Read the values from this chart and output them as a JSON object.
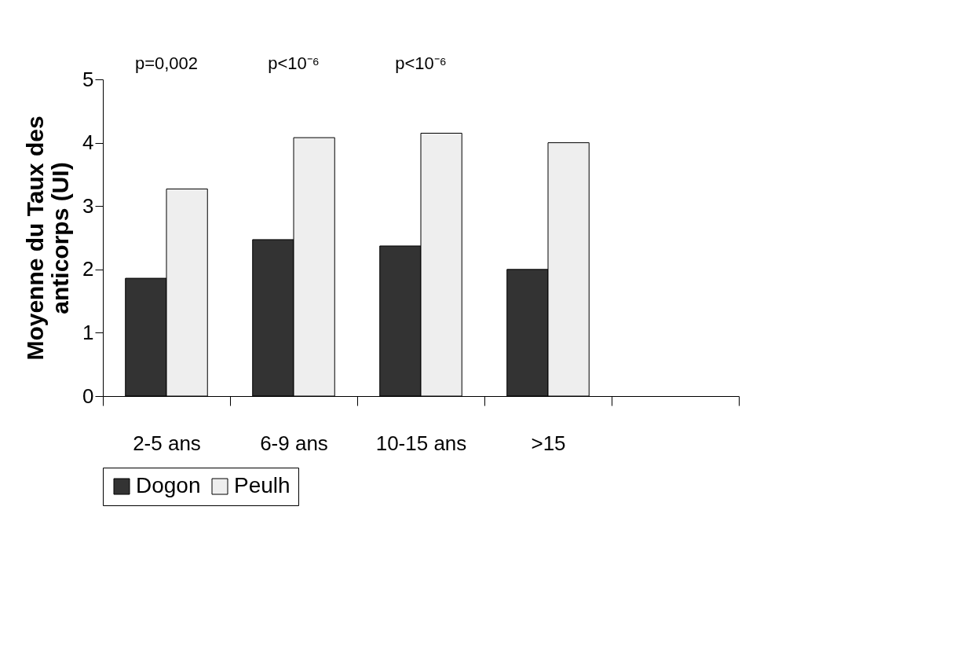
{
  "chart_data": {
    "type": "bar",
    "ylabel": "Moyenne du Taux des\nanticorps (UI)",
    "categories": [
      "2-5 ans",
      "6-9 ans",
      "10-15 ans",
      ">15",
      null
    ],
    "series": [
      {
        "name": "Dogon",
        "color": "#333333",
        "values": [
          1.86,
          2.47,
          2.37,
          2.0,
          null
        ]
      },
      {
        "name": "Peulh",
        "color": "#eeeeee",
        "values": [
          3.27,
          4.08,
          4.15,
          4.0,
          null
        ]
      }
    ],
    "ylim": [
      0,
      5
    ],
    "yticks": [
      0,
      1,
      2,
      3,
      4,
      5
    ],
    "grid": false,
    "legend": "bottom",
    "annotations": [
      "p=0,002",
      "p<10⁻⁶",
      "p<10⁻⁶"
    ]
  }
}
